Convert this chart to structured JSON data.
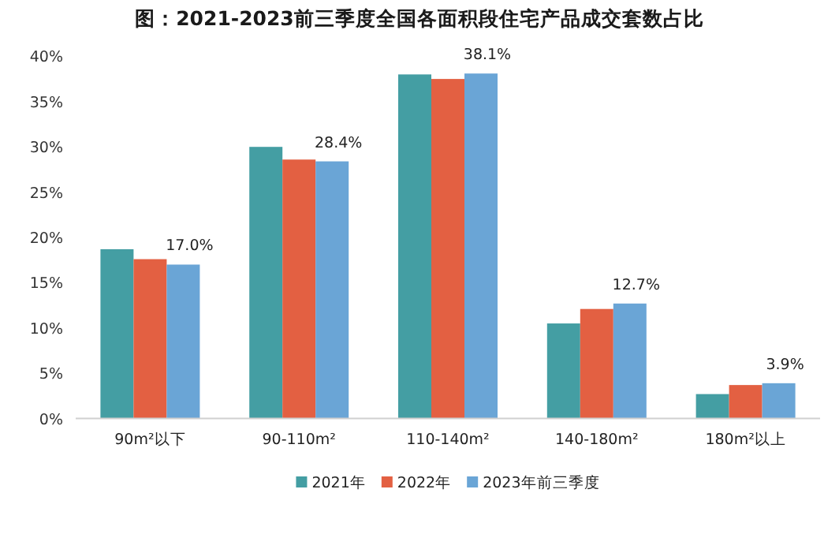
{
  "chart_data": {
    "type": "bar",
    "title": "图：2021-2023前三季度全国各面积段住宅产品成交套数占比",
    "categories": [
      "90m²以下",
      "90-110m²",
      "110-140m²",
      "140-180m²",
      "180m²以上"
    ],
    "series": [
      {
        "name": "2021年",
        "color": "#449ea3",
        "values": [
          18.7,
          30.0,
          38.0,
          10.5,
          2.7
        ]
      },
      {
        "name": "2022年",
        "color": "#e36042",
        "values": [
          17.6,
          28.6,
          37.5,
          12.1,
          3.7
        ]
      },
      {
        "name": "2023年前三季度",
        "color": "#6aa5d6",
        "values": [
          17.0,
          28.4,
          38.1,
          12.7,
          3.9
        ],
        "value_labels": [
          "17.0%",
          "28.4%",
          "38.1%",
          "12.7%",
          "3.9%"
        ]
      }
    ],
    "ylim": [
      0,
      40
    ],
    "yticks": [
      {
        "value": 0,
        "label": "0%"
      },
      {
        "value": 5,
        "label": "5%"
      },
      {
        "value": 10,
        "label": "10%"
      },
      {
        "value": 15,
        "label": "15%"
      },
      {
        "value": 20,
        "label": "20%"
      },
      {
        "value": 25,
        "label": "25%"
      },
      {
        "value": 30,
        "label": "30%"
      },
      {
        "value": 35,
        "label": "35%"
      },
      {
        "value": 40,
        "label": "40%"
      }
    ],
    "legend": "bottom"
  }
}
